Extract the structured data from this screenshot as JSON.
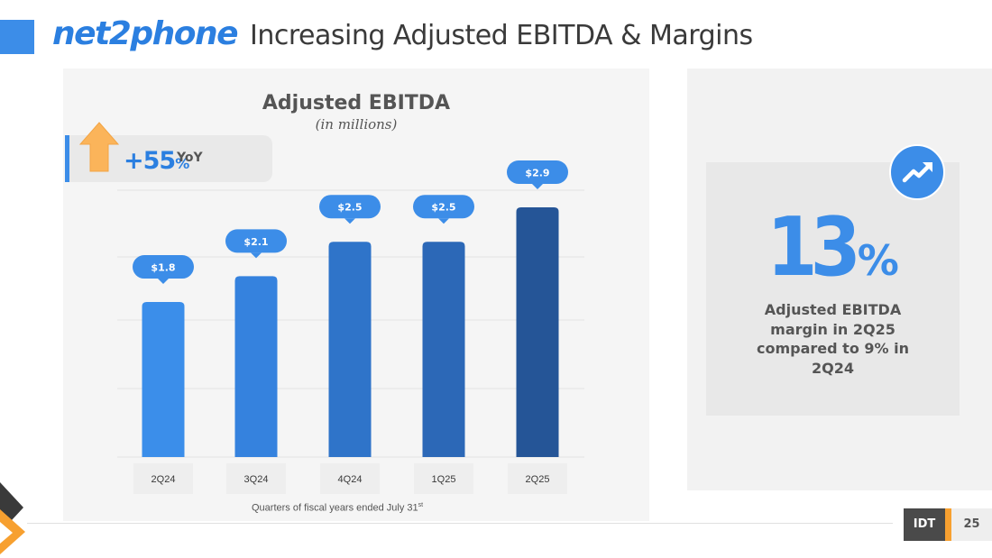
{
  "header": {
    "logo_text_a": "net",
    "logo_text_b": "2",
    "logo_text_c": "phone",
    "title": "Increasing Adjusted EBITDA & Margins"
  },
  "yoy": {
    "value": "+55",
    "unit": "%",
    "label": "YoY"
  },
  "chart_data": {
    "type": "bar",
    "title": "Adjusted EBITDA",
    "subtitle": "(in millions)",
    "categories": [
      "2Q24",
      "3Q24",
      "4Q24",
      "1Q25",
      "2Q25"
    ],
    "values": [
      1.8,
      2.1,
      2.5,
      2.5,
      2.9
    ],
    "data_labels": [
      "$1.8",
      "$2.1",
      "$2.5",
      "$2.5",
      "$2.9"
    ],
    "bar_colors": [
      "#3b8eea",
      "#3582de",
      "#2f74c9",
      "#2c68b7",
      "#255597"
    ],
    "label_color": "#3c8de8",
    "ylim": [
      0,
      3.35
    ],
    "xlabel": "",
    "ylabel": "",
    "grid": true
  },
  "footnote": {
    "text": "Quarters of fiscal years ended July 31",
    "sup": "st"
  },
  "kpi": {
    "value": "13",
    "unit": "%",
    "description": "Adjusted EBITDA margin in 2Q25 compared to 9% in 2Q24",
    "icon": "trend-up-icon"
  },
  "footer": {
    "company": "IDT",
    "page_number": "25"
  },
  "colors": {
    "brand_blue": "#3c8de8",
    "accent_orange": "#f7a030",
    "dark": "#4a4a4a"
  }
}
